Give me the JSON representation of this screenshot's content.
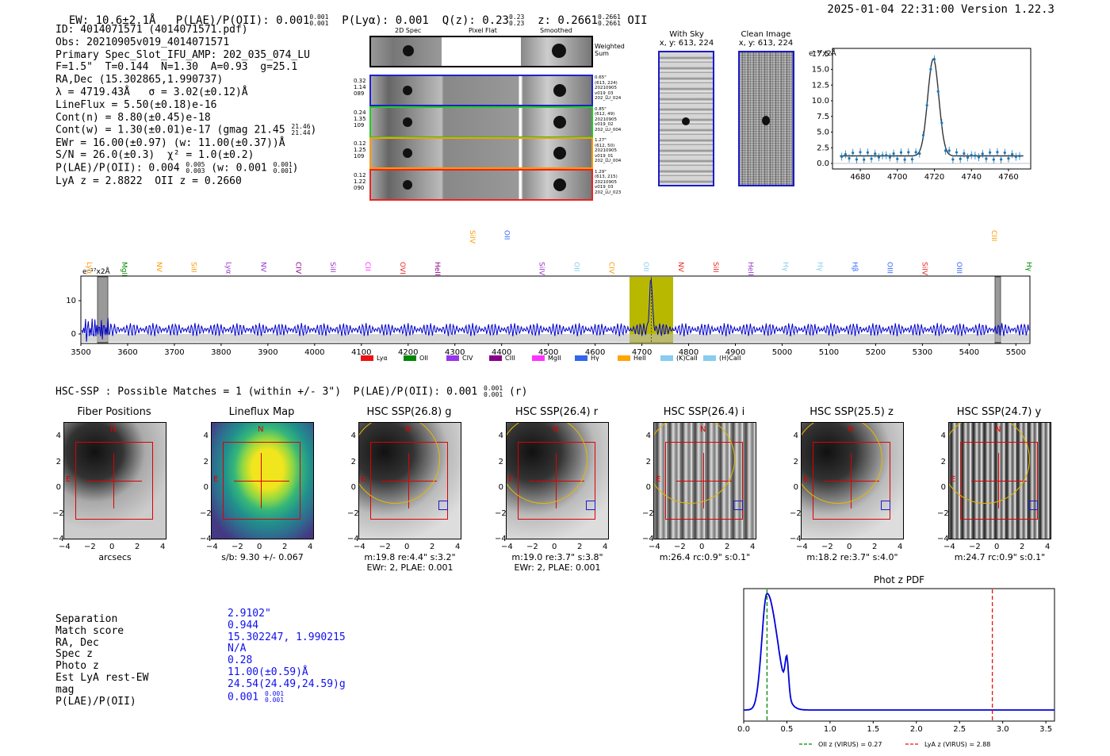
{
  "header": {
    "ew": "EW: 10.6±2.1Å",
    "plae_label": "P(LAE)/P(OII): 0.001",
    "plae_sup": "0.001",
    "plae_sub": "0.001",
    "plya": "P(Lyα): 0.001",
    "qz_label": "Q(z): 0.23",
    "qz_sup": "0.23",
    "qz_sub": "0.23",
    "z_label": "z: 0.2661",
    "z_sup": "0.2661",
    "z_sub": "0.2661",
    "z_line": "OII",
    "timestamp": "2025-01-04 22:31:00",
    "version": "Version 1.22.3"
  },
  "info": {
    "id": "ID: 4014071571 (4014071571.pdf)",
    "obs": "Obs: 20210905v019_4014071571",
    "primary": "Primary Spec_Slot_IFU_AMP: 202_035_074_LU",
    "params": "F=1.5\"  T=0.144  N=1.30  A=0.93  g=25.1",
    "radec": "RA,Dec (15.302865,1.990737)",
    "lambda": "λ = 4719.43Å   σ = 3.02(±0.12)Å",
    "lineflux": "LineFlux = 5.50(±0.18)e-16",
    "contn": "Cont(n) = 8.80(±0.45)e-18",
    "contw": "Cont(w) = 1.30(±0.01)e-17 (gmag 21.45",
    "contw_sup": "21.46",
    "contw_sub": "21.44",
    "contw_end": ")",
    "ewr": "EWr = 16.00(±0.97) (w: 11.00(±0.37))Å",
    "sn": "S/N = 26.0(±0.3)  χ² = 1.0(±0.2)",
    "plae": "P(LAE)/P(OII): 0.004",
    "plae_sup": "0.005",
    "plae_sub": "0.003",
    "plae_w": "(w: 0.001",
    "plae_w_sup": "0.001",
    "plae_w_sub": "0.001",
    "plae_end": ")",
    "redshifts": "LyA z = 2.8822  OII z = 0.2660"
  },
  "cutouts": {
    "col_2d": "2D Spec",
    "col_flat": "Pixel Flat",
    "col_smooth": "Smoothed",
    "weighted": "Weighted Sum",
    "rows": [
      {
        "left": [
          "0.32",
          "1.14",
          "089"
        ],
        "right": [
          "0.65\"",
          "(613, 224)",
          "20210905",
          "v019_03",
          "202_LU_024"
        ],
        "color": "#2222cc"
      },
      {
        "left": [
          "0.24",
          "1.35",
          "109"
        ],
        "right": [
          "0.85\"",
          "(612, 49)",
          "20210905",
          "v019_02",
          "202_LU_004"
        ],
        "color": "#22cc22"
      },
      {
        "left": [
          "0.12",
          "1.25",
          "109"
        ],
        "right": [
          "1.27\"",
          "(612, 50)",
          "20210905",
          "v019_01",
          "202_LU_004"
        ],
        "color": "#ff9900"
      },
      {
        "left": [
          "0.12",
          "1.22",
          "090"
        ],
        "right": [
          "1.29\"",
          "(613, 215)",
          "20210905",
          "v019_03",
          "202_LU_023"
        ],
        "color": "#ee2222"
      }
    ]
  },
  "sky": {
    "with_sky": "With Sky",
    "with_sky_xy": "x, y: 613, 224",
    "clean": "Clean Image",
    "clean_xy": "x, y: 613, 224"
  },
  "zoom_plot": {
    "unit": "e⁻¹⁷x2Å",
    "yticks": [
      "17.5",
      "15.0",
      "12.5",
      "10.0",
      "7.5",
      "5.0",
      "2.5",
      "0.0"
    ],
    "xticks": [
      "4680",
      "4700",
      "4720",
      "4740",
      "4760"
    ]
  },
  "spectrum": {
    "unit": "e⁻¹⁷x2Å",
    "yticks": [
      "10",
      "0"
    ],
    "xticks": [
      "3500",
      "3600",
      "3700",
      "3800",
      "3900",
      "4000",
      "4100",
      "4200",
      "4300",
      "4400",
      "4500",
      "4600",
      "4700",
      "4800",
      "4900",
      "5000",
      "5100",
      "5200",
      "5300",
      "5400",
      "5500"
    ],
    "lines": [
      {
        "t": "Lyα",
        "c": "#ff9900",
        "row": 1
      },
      {
        "t": "MgII",
        "c": "#008800",
        "row": 1
      },
      {
        "t": "NV",
        "c": "#ff9900",
        "row": 1
      },
      {
        "t": "SiII",
        "c": "#ff9900",
        "row": 1
      },
      {
        "t": "Lyα",
        "c": "#9933cc",
        "row": 1
      },
      {
        "t": "NV",
        "c": "#9933cc",
        "row": 1
      },
      {
        "t": "CIV",
        "c": "#880088",
        "row": 1
      },
      {
        "t": "SiII",
        "c": "#9933cc",
        "row": 1
      },
      {
        "t": "CII",
        "c": "#ff33ff",
        "row": 1
      },
      {
        "t": "OVI",
        "c": "#ee2222",
        "row": 1
      },
      {
        "t": "HeII",
        "c": "#880088",
        "row": 1
      },
      {
        "t": "SiIV",
        "c": "#ff9900",
        "row": 0
      },
      {
        "t": "OII",
        "c": "#3366ff",
        "row": 0
      },
      {
        "t": "SiIV",
        "c": "#9933cc",
        "row": 1
      },
      {
        "t": "OII",
        "c": "#88ccee",
        "row": 1
      },
      {
        "t": "CIV",
        "c": "#ff9900",
        "row": 1
      },
      {
        "t": "OII",
        "c": "#88ccee",
        "row": 1
      },
      {
        "t": "NV",
        "c": "#ee2222",
        "row": 1
      },
      {
        "t": "SiII",
        "c": "#ee2222",
        "row": 1
      },
      {
        "t": "HeII",
        "c": "#9933cc",
        "row": 1
      },
      {
        "t": "Hγ",
        "c": "#88ccee",
        "row": 1
      },
      {
        "t": "Hγ",
        "c": "#88ccee",
        "row": 1
      },
      {
        "t": "Hβ",
        "c": "#3366ff",
        "row": 1
      },
      {
        "t": "OIII",
        "c": "#3366ff",
        "row": 1
      },
      {
        "t": "SiIV",
        "c": "#ee2222",
        "row": 1
      },
      {
        "t": "OIII",
        "c": "#3366ff",
        "row": 1
      },
      {
        "t": "CIII",
        "c": "#ff9900",
        "row": 0
      },
      {
        "t": "Hγ",
        "c": "#008800",
        "row": 1
      }
    ],
    "legend": [
      {
        "label": "Lyα",
        "color": "#ee1111"
      },
      {
        "label": "OII",
        "color": "#008800"
      },
      {
        "label": "CIV",
        "color": "#9933ee"
      },
      {
        "label": "CIII",
        "color": "#880088"
      },
      {
        "label": "MgII",
        "color": "#ff33ff"
      },
      {
        "label": "Hγ",
        "color": "#3366ee"
      },
      {
        "label": "HeII",
        "color": "#ffa500"
      },
      {
        "label": "(K)CaII",
        "color": "#88ccee"
      },
      {
        "label": "(H)CaII",
        "color": "#88ccee"
      }
    ]
  },
  "hsc": {
    "heading": "HSC-SSP : Possible Matches = 1 (within +/- 3\")  P(LAE)/P(OII): 0.001",
    "heading_sup": "0.001",
    "heading_sub": "0.001",
    "heading_end": "(r)",
    "panels": [
      {
        "title": "Fiber Positions",
        "cap1": "arcsecs",
        "cap2": ""
      },
      {
        "title": "Lineflux Map",
        "cap1": "s/b: 9.30 +/- 0.067",
        "cap2": ""
      },
      {
        "title": "HSC SSP(26.8) g",
        "cap1": "m:19.8  re:4.4\"  s:3.2\"",
        "cap2": "EWr: 2, PLAE: 0.001"
      },
      {
        "title": "HSC SSP(26.4) r",
        "cap1": "m:19.0  re:3.7\"  s:3.8\"",
        "cap2": "EWr: 2, PLAE: 0.001"
      },
      {
        "title": "HSC SSP(26.4) i",
        "cap1": "m:26.4  rc:0.9\"  s:0.1\"",
        "cap2": ""
      },
      {
        "title": "HSC SSP(25.5) z",
        "cap1": "m:18.2  re:3.7\"  s:4.0\"",
        "cap2": ""
      },
      {
        "title": "HSC SSP(24.7) y",
        "cap1": "m:24.7  rc:0.9\"  s:0.1\"",
        "cap2": ""
      }
    ],
    "yticks": [
      "4",
      "2",
      "0",
      "−2",
      "−4"
    ],
    "xticks": [
      "−4",
      "−2",
      "0",
      "2",
      "4"
    ],
    "n_label": "N",
    "e_label": "E"
  },
  "match": {
    "labels": [
      "Separation",
      "Match score",
      "RA, Dec",
      "Spec z",
      "Photo z",
      "Est LyA rest-EW",
      "mag",
      "P(LAE)/P(OII)"
    ],
    "values": [
      "2.9102\"",
      "0.944",
      "15.302247, 1.990215",
      "N/A",
      "0.28",
      "11.00(±0.59)Å",
      "24.54(24.49,24.59)g",
      "0.001"
    ],
    "plae_sup": "0.001",
    "plae_sub": "0.001"
  },
  "photz": {
    "title": "Phot z PDF",
    "xticks": [
      "0.0",
      "0.5",
      "1.0",
      "1.5",
      "2.0",
      "2.5",
      "3.0",
      "3.5"
    ],
    "legend_oii": "OII z (VIRUS) = 0.27",
    "legend_lya": "LyA z (VIRUS) = 2.88",
    "oii_z": 0.27,
    "lya_z": 2.88
  }
}
